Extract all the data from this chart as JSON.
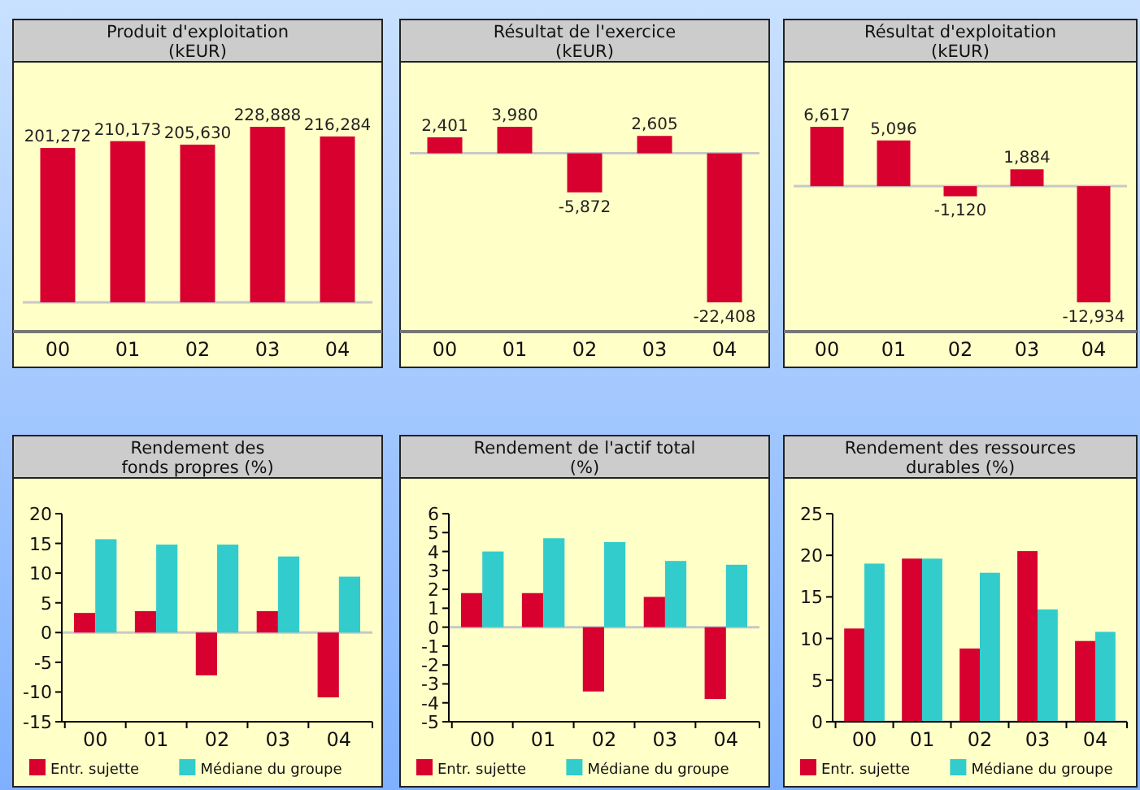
{
  "chart_data": [
    {
      "type": "bar",
      "title": "Produit d'exploitation\n(kEUR)",
      "categories": [
        "00",
        "01",
        "02",
        "03",
        "04"
      ],
      "values": [
        201272,
        210173,
        205630,
        228888,
        216284
      ],
      "value_labels": [
        "201,272",
        "210,173",
        "205,630",
        "228,888",
        "216,284"
      ],
      "color": "#d8002f",
      "tick_labels": "x"
    },
    {
      "type": "bar",
      "title": "Résultat de l'exercice\n(kEUR)",
      "categories": [
        "00",
        "01",
        "02",
        "03",
        "04"
      ],
      "values": [
        2401,
        3980,
        -5872,
        2605,
        -22408
      ],
      "value_labels": [
        "2,401",
        "3,980",
        "-5,872",
        "2,605",
        "-22,408"
      ],
      "color": "#d8002f",
      "tick_labels": "x"
    },
    {
      "type": "bar",
      "title": "Résultat d'exploitation\n(kEUR)",
      "categories": [
        "00",
        "01",
        "02",
        "03",
        "04"
      ],
      "values": [
        6617,
        5096,
        -1120,
        1884,
        -12934
      ],
      "value_labels": [
        "6,617",
        "5,096",
        "-1,120",
        "1,884",
        "-12,934"
      ],
      "color": "#d8002f",
      "tick_labels": "x"
    },
    {
      "type": "bar",
      "title": "Rendement des\nfonds propres (%)",
      "categories": [
        "00",
        "01",
        "02",
        "03",
        "04"
      ],
      "series": [
        {
          "name": "Entr. sujette",
          "color": "#d8002f",
          "values": [
            3.3,
            3.6,
            -7.2,
            3.6,
            -10.9
          ]
        },
        {
          "name": "Médiane du groupe",
          "color": "#33cccc",
          "values": [
            15.7,
            14.8,
            14.8,
            12.8,
            9.4
          ]
        }
      ],
      "ylim": [
        -15,
        20
      ],
      "yticks": [
        -15,
        -10,
        -5,
        0,
        5,
        10,
        15,
        20
      ],
      "legend": "bottom"
    },
    {
      "type": "bar",
      "title": "Rendement de l'actif total\n(%)",
      "categories": [
        "00",
        "01",
        "02",
        "03",
        "04"
      ],
      "series": [
        {
          "name": "Entr. sujette",
          "color": "#d8002f",
          "values": [
            1.8,
            1.8,
            -3.4,
            1.6,
            -3.8
          ]
        },
        {
          "name": "Médiane du groupe",
          "color": "#33cccc",
          "values": [
            4.0,
            4.7,
            4.5,
            3.5,
            3.3
          ]
        }
      ],
      "ylim": [
        -5,
        6
      ],
      "yticks": [
        -5,
        -4,
        -3,
        -2,
        -1,
        0,
        1,
        2,
        3,
        4,
        5,
        6
      ],
      "legend": "bottom"
    },
    {
      "type": "bar",
      "title": "Rendement des ressources\ndurables (%)",
      "categories": [
        "00",
        "01",
        "02",
        "03",
        "04"
      ],
      "series": [
        {
          "name": "Entr. sujette",
          "color": "#d8002f",
          "values": [
            11.2,
            19.6,
            8.8,
            20.5,
            9.7
          ]
        },
        {
          "name": "Médiane du groupe",
          "color": "#33cccc",
          "values": [
            19.0,
            19.6,
            17.9,
            13.5,
            10.8
          ]
        }
      ],
      "ylim": [
        0,
        25
      ],
      "yticks": [
        0,
        5,
        10,
        15,
        20,
        25
      ],
      "legend": "bottom"
    }
  ]
}
